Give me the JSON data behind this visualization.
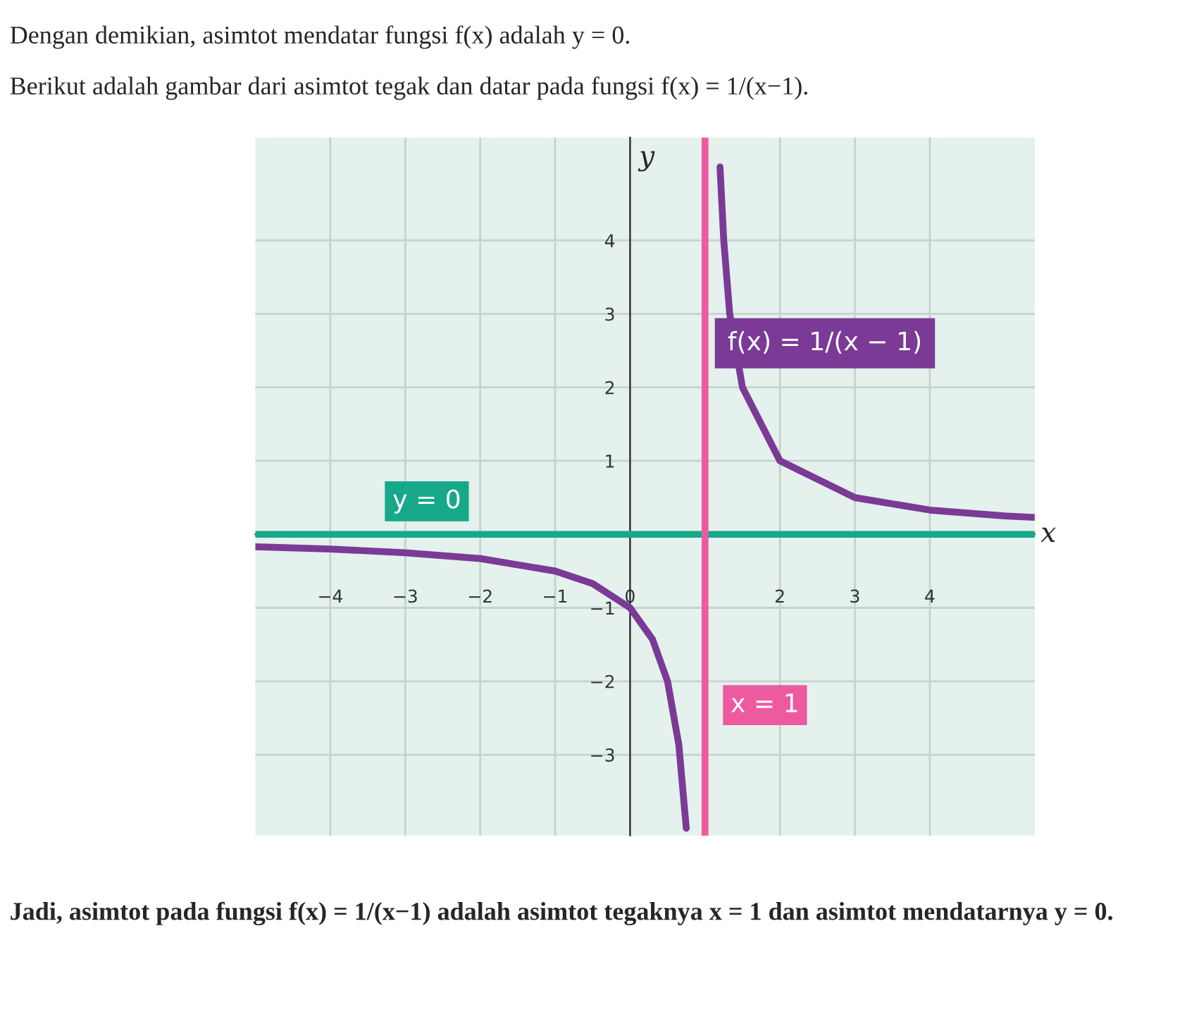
{
  "chart_data": {
    "type": "line",
    "title": "Dengan demikian, asimtot mendatar fungsi f(x) adalah y = 0.",
    "subtitle": "Berikut adalah gambar dari asimtot tegak dan datar pada fungsi f(x) = 1/(x−1).",
    "xlabel": "x",
    "ylabel": "y",
    "series": [
      {
        "name": "f(x) = 1/(x − 1)",
        "color": "#7b3a96",
        "x": [
          -5,
          -4,
          -3,
          -2,
          -1,
          -0.5,
          0,
          0.3,
          0.5,
          0.65,
          0.75,
          1,
          1.2,
          1.25,
          1.33,
          1.5,
          2,
          3,
          4,
          5,
          5.4
        ],
        "values": [
          -0.17,
          -0.2,
          -0.25,
          -0.33,
          -0.5,
          -0.67,
          -1,
          -1.43,
          -2,
          -2.86,
          -4,
          null,
          5,
          4,
          3,
          2,
          1,
          0.5,
          0.33,
          0.25,
          0.23
        ]
      }
    ],
    "ref_lines": [
      {
        "axis": "y",
        "value": 0,
        "label": "y = 0",
        "color": "#17a88a"
      },
      {
        "axis": "x",
        "value": 1,
        "label": "x = 1",
        "color": "#ee5aa0"
      }
    ],
    "xlim": [
      -5,
      5.4
    ],
    "ylim": [
      -4.1,
      5.4
    ],
    "xticks": [
      -4,
      -3,
      -2,
      -1,
      0,
      {
        "value": 1,
        "label": null
      },
      2,
      3,
      4
    ],
    "yticks": [
      -3,
      -2,
      -1,
      {
        "value": 0,
        "label": null
      },
      1,
      2,
      3,
      4
    ],
    "grid": true,
    "legend": false,
    "annotations": [
      "Jadi, asimtot pada fungsi f(x) = 1/(x−1) adalah asimtot tegaknya x = 1 dan asimtot mendatarnya y = 0."
    ]
  }
}
